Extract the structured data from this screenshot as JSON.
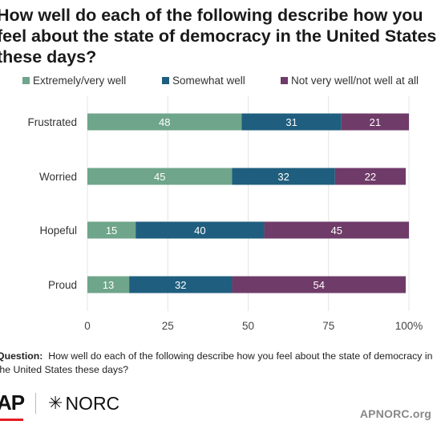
{
  "title": "How well do each of the following describe how you feel about the state of democracy in the United States these days?",
  "legend": [
    {
      "label": "Extremely/very well",
      "color": "#6fa58b"
    },
    {
      "label": "Somewhat well",
      "color": "#1f5e7e"
    },
    {
      "label": "Not very well/not well at all",
      "color": "#6f3b68"
    }
  ],
  "chart_data": {
    "type": "bar",
    "orientation": "horizontal",
    "stacked": true,
    "categories": [
      "Frustrated",
      "Worried",
      "Hopeful",
      "Proud"
    ],
    "series": [
      {
        "name": "Extremely/very well",
        "values": [
          48,
          45,
          15,
          13
        ],
        "color": "#6fa58b"
      },
      {
        "name": "Somewhat well",
        "values": [
          31,
          32,
          40,
          32
        ],
        "color": "#1f5e7e"
      },
      {
        "name": "Not very well/not well at all",
        "values": [
          21,
          22,
          45,
          54
        ],
        "color": "#6f3b68"
      }
    ],
    "xlim": [
      0,
      100
    ],
    "xticks": [
      "0",
      "25",
      "50",
      "75",
      "100%"
    ],
    "grid": true,
    "legend_position": "top"
  },
  "footnote": {
    "label": "Question:",
    "text": "How well do each of the following describe how you feel about the state of democracy in the United States these days?"
  },
  "branding": {
    "logo_ap": "AP",
    "logo_norc": "NORC",
    "logo_norc_symbol": "✳",
    "accent_color": "#e31b23",
    "website": "APNORC.org"
  }
}
